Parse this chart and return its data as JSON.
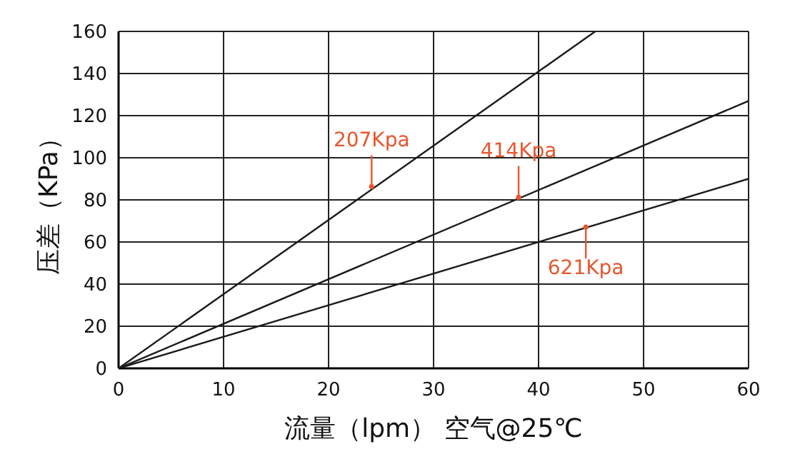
{
  "chart_data": {
    "type": "line",
    "xlabel": "流量（lpm） 空气@25℃",
    "ylabel": "压差（KPa）",
    "series": [
      {
        "color": "#1a1a1a",
        "x": [
          0,
          45.4
        ],
        "values": [
          0,
          160
        ]
      },
      {
        "color": "#1a1a1a",
        "x": [
          0,
          60
        ],
        "values": [
          0,
          127
        ]
      },
      {
        "color": "#1a1a1a",
        "x": [
          0,
          60
        ],
        "values": [
          0,
          90
        ]
      }
    ],
    "xlim": [
      0,
      60
    ],
    "ylim": [
      0,
      160
    ],
    "xticks": [
      0,
      10,
      20,
      30,
      40,
      50,
      60
    ],
    "yticks": [
      0,
      20,
      40,
      60,
      80,
      100,
      120,
      140,
      160
    ],
    "grid": true,
    "line_style": "solid",
    "marker": "none",
    "annotations": [
      {
        "text": "207Kpa",
        "x": 24.1,
        "y": 86.3
      },
      {
        "text": "414Kpa",
        "x": 38.1,
        "y": 81.2
      },
      {
        "text": "621Kpa",
        "x": 44.5,
        "y": 67.1
      }
    ]
  }
}
